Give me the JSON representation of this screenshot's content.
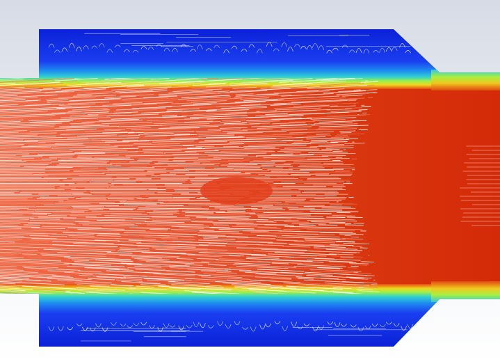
{
  "scene": {
    "subject": "",
    "colormap": {
      "stops": [
        "#0a1fd6",
        "#1e6cf0",
        "#25b8e8",
        "#3fe0a0",
        "#b8f03a",
        "#f0e020",
        "#f89a1c",
        "#e84a12",
        "#d42a08"
      ]
    },
    "colors": {
      "background_top": "#d6dce6",
      "background_bottom": "#ffffff",
      "core_red": "#d8300a",
      "streak_light": "#ffe0d6",
      "streak_white": "#ffffff",
      "recirc_blue": "#1236e0"
    }
  }
}
